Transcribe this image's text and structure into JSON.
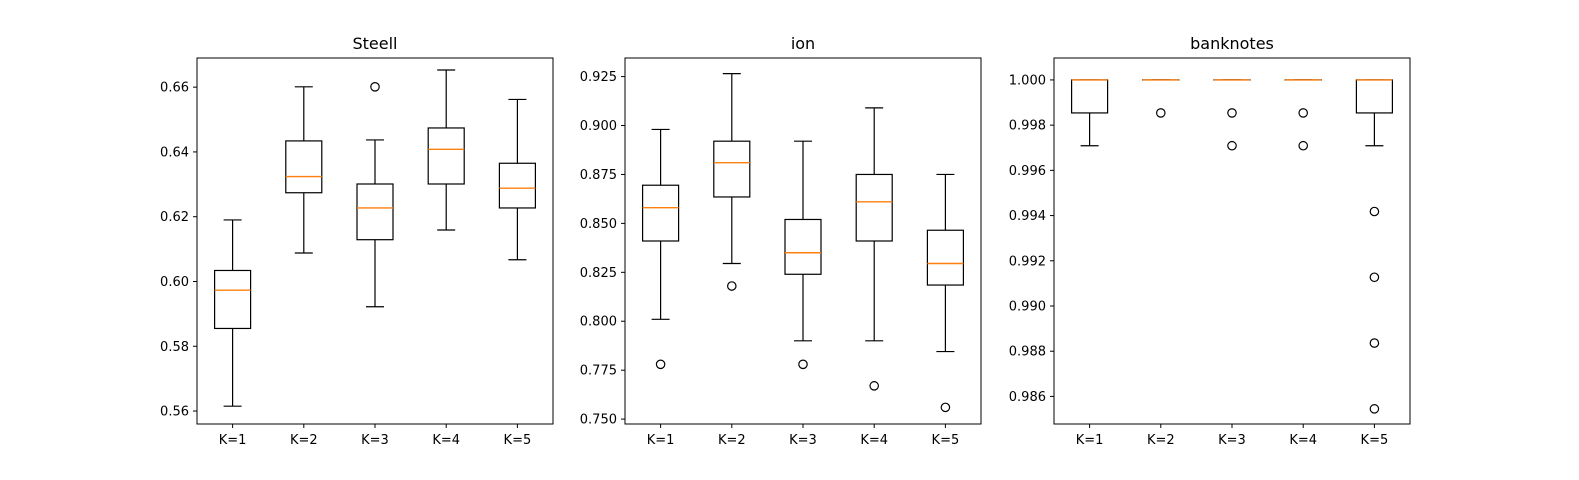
{
  "chart_data": [
    {
      "type": "box",
      "title": "Steell",
      "categories": [
        "K=1",
        "K=2",
        "K=3",
        "K=4",
        "K=5"
      ],
      "ylim": [
        0.556,
        0.669
      ],
      "yticks": [
        0.56,
        0.58,
        0.6,
        0.62,
        0.64,
        0.66
      ],
      "ytick_labels": [
        "0.56",
        "0.58",
        "0.60",
        "0.62",
        "0.64",
        "0.66"
      ],
      "median_color": "#ff7f0e",
      "boxes": [
        {
          "whislo": 0.5615,
          "q1": 0.5855,
          "med": 0.5973,
          "q3": 0.6034,
          "whishi": 0.619,
          "fliers": []
        },
        {
          "whislo": 0.6088,
          "q1": 0.6274,
          "med": 0.6324,
          "q3": 0.6434,
          "whishi": 0.6601,
          "fliers": []
        },
        {
          "whislo": 0.5922,
          "q1": 0.6129,
          "med": 0.6227,
          "q3": 0.6301,
          "whishi": 0.6437,
          "fliers": [
            0.6601
          ]
        },
        {
          "whislo": 0.6159,
          "q1": 0.6301,
          "med": 0.6408,
          "q3": 0.6474,
          "whishi": 0.6653,
          "fliers": []
        },
        {
          "whislo": 0.6067,
          "q1": 0.6227,
          "med": 0.6288,
          "q3": 0.6365,
          "whishi": 0.6562,
          "fliers": []
        }
      ]
    },
    {
      "type": "box",
      "title": "ion",
      "categories": [
        "K=1",
        "K=2",
        "K=3",
        "K=4",
        "K=5"
      ],
      "ylim": [
        0.7475,
        0.9345
      ],
      "yticks": [
        0.75,
        0.775,
        0.8,
        0.825,
        0.85,
        0.875,
        0.9,
        0.925
      ],
      "ytick_labels": [
        "0.750",
        "0.775",
        "0.800",
        "0.825",
        "0.850",
        "0.875",
        "0.900",
        "0.925"
      ],
      "median_color": "#ff7f0e",
      "boxes": [
        {
          "whislo": 0.801,
          "q1": 0.841,
          "med": 0.858,
          "q3": 0.8695,
          "whishi": 0.898,
          "fliers": [
            0.778
          ]
        },
        {
          "whislo": 0.8295,
          "q1": 0.8635,
          "med": 0.881,
          "q3": 0.892,
          "whishi": 0.9265,
          "fliers": [
            0.818
          ]
        },
        {
          "whislo": 0.79,
          "q1": 0.824,
          "med": 0.835,
          "q3": 0.852,
          "whishi": 0.892,
          "fliers": [
            0.778
          ]
        },
        {
          "whislo": 0.79,
          "q1": 0.841,
          "med": 0.861,
          "q3": 0.875,
          "whishi": 0.909,
          "fliers": [
            0.767
          ]
        },
        {
          "whislo": 0.7845,
          "q1": 0.8185,
          "med": 0.8295,
          "q3": 0.8465,
          "whishi": 0.875,
          "fliers": [
            0.756
          ]
        }
      ]
    },
    {
      "type": "box",
      "title": "banknotes",
      "categories": [
        "K=1",
        "K=2",
        "K=3",
        "K=4",
        "K=5"
      ],
      "ylim": [
        0.98478,
        1.00097
      ],
      "yticks": [
        0.986,
        0.988,
        0.99,
        0.992,
        0.994,
        0.996,
        0.998,
        1.0
      ],
      "ytick_labels": [
        "0.986",
        "0.988",
        "0.990",
        "0.992",
        "0.994",
        "0.996",
        "0.998",
        "1.000"
      ],
      "median_color": "#ff7f0e",
      "boxes": [
        {
          "whislo": 0.99709,
          "q1": 0.99854,
          "med": 1.0,
          "q3": 1.0,
          "whishi": 1.0,
          "fliers": []
        },
        {
          "whislo": 1.0,
          "q1": 1.0,
          "med": 1.0,
          "q3": 1.0,
          "whishi": 1.0,
          "fliers": [
            0.99854
          ]
        },
        {
          "whislo": 1.0,
          "q1": 1.0,
          "med": 1.0,
          "q3": 1.0,
          "whishi": 1.0,
          "fliers": [
            0.99854,
            0.99709
          ]
        },
        {
          "whislo": 1.0,
          "q1": 1.0,
          "med": 1.0,
          "q3": 1.0,
          "whishi": 1.0,
          "fliers": [
            0.99854,
            0.99709
          ]
        },
        {
          "whislo": 0.99709,
          "q1": 0.99854,
          "med": 1.0,
          "q3": 1.0,
          "whishi": 1.0,
          "fliers": [
            0.99418,
            0.99127,
            0.98836,
            0.98545
          ]
        }
      ]
    }
  ]
}
